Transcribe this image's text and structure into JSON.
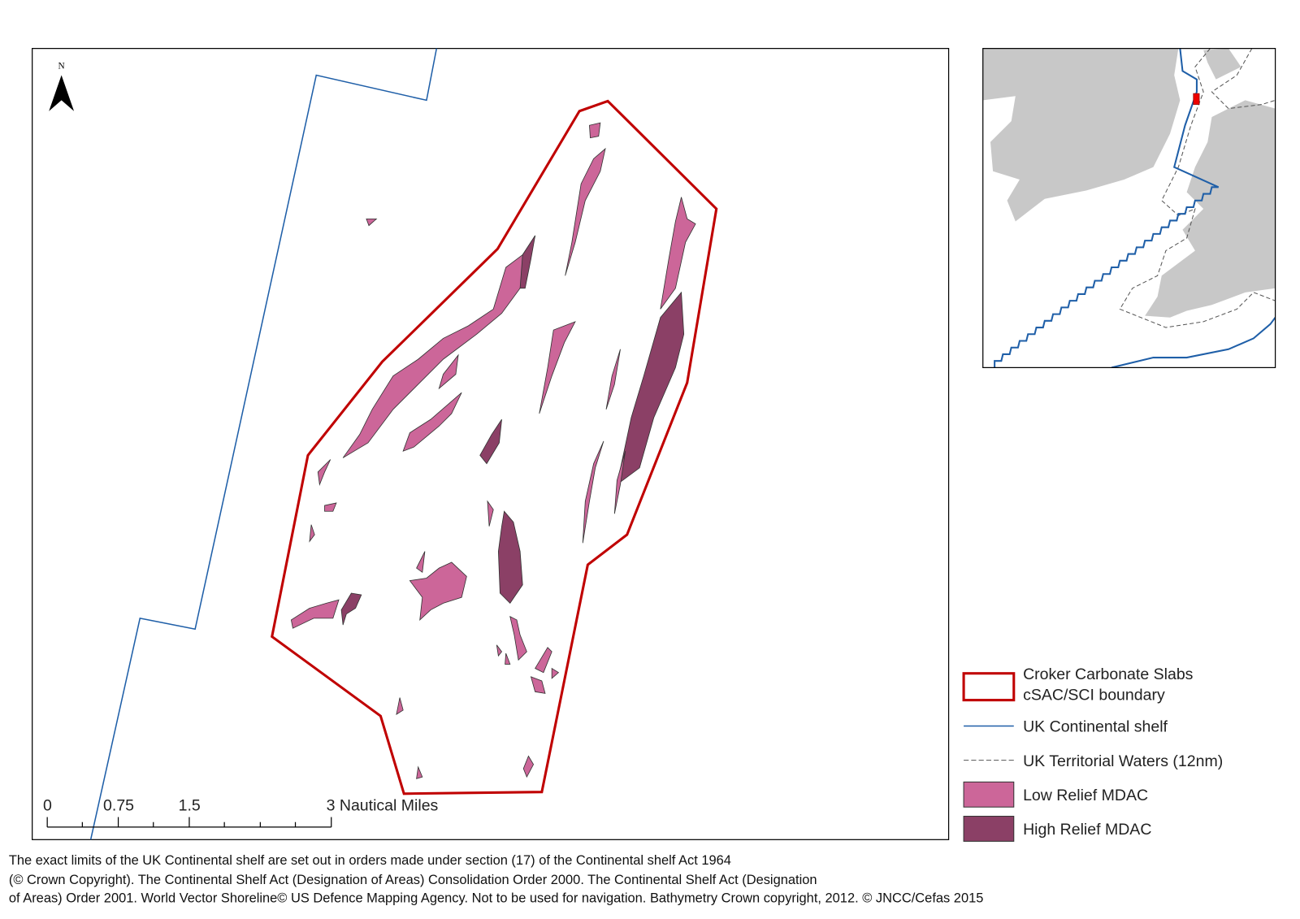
{
  "map": {
    "north_label": "N",
    "scale_bar": {
      "labels": [
        "0",
        "0.75",
        "1.5",
        "3 Nautical Miles"
      ]
    }
  },
  "legend": {
    "items": [
      [
        "Croker Carbonate Slabs",
        "cSAC/SCI boundary"
      ],
      [
        "UK Continental shelf"
      ],
      [
        "UK Territorial Waters (12nm)"
      ],
      [
        "Low Relief MDAC"
      ],
      [
        "High Relief MDAC"
      ]
    ]
  },
  "footnote": {
    "lines": [
      "The exact limits of the UK Continental shelf are set out in orders made under section (17) of the Continental shelf Act 1964",
      "(© Crown Copyright). The Continental Shelf Act (Designation of Areas) Consolidation Order 2000. The Continental Shelf Act (Designation",
      "of Areas) Order 2001. World Vector Shoreline© US Defence Mapping Agency. Not to be used for navigation. Bathymetry Crown copyright, 2012. © JNCC/Cefas 2015"
    ]
  }
}
